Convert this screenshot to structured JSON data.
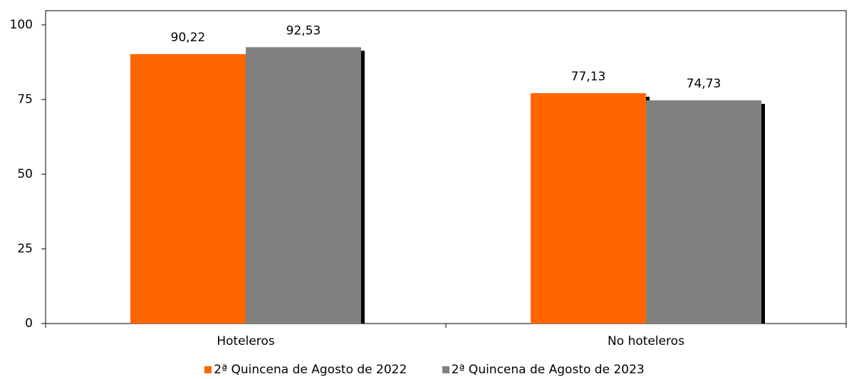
{
  "chart_data": {
    "type": "bar",
    "categories": [
      "Hoteleros",
      "No hoteleros"
    ],
    "series": [
      {
        "name": "2ª Quincena de Agosto de 2022",
        "values": [
          90.22,
          77.13
        ],
        "labels": [
          "90,22",
          "77,13"
        ],
        "color": "#ff6600"
      },
      {
        "name": "2ª Quincena de Agosto de 2023",
        "values": [
          92.53,
          74.73
        ],
        "labels": [
          "92,53",
          "74,73"
        ],
        "color": "#808080"
      }
    ],
    "yticks": [
      0,
      25,
      50,
      75,
      100
    ],
    "ylim": [
      0,
      100
    ],
    "legend_position": "bottom",
    "grid": false
  }
}
